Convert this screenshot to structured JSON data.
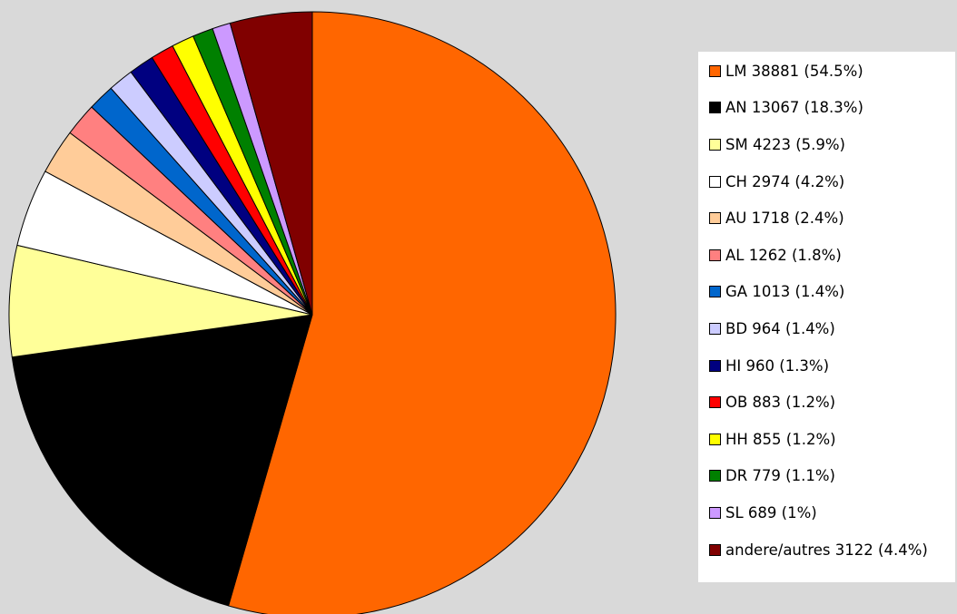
{
  "chart_data": {
    "type": "pie",
    "start_angle_deg": 0,
    "direction": "clockwise",
    "slices": [
      {
        "code": "LM",
        "value": 38881,
        "percent_label": "(54.5%)",
        "color": "#ff6600",
        "label": "LM 38881 (54.5%)"
      },
      {
        "code": "AN",
        "value": 13067,
        "percent_label": "(18.3%)",
        "color": "#000000",
        "label": "AN 13067 (18.3%)"
      },
      {
        "code": "SM",
        "value": 4223,
        "percent_label": "(5.9%)",
        "color": "#ffff99",
        "label": "SM 4223 (5.9%)"
      },
      {
        "code": "CH",
        "value": 2974,
        "percent_label": "(4.2%)",
        "color": "#ffffff",
        "label": "CH 2974 (4.2%)"
      },
      {
        "code": "AU",
        "value": 1718,
        "percent_label": "(2.4%)",
        "color": "#ffcc99",
        "label": "AU 1718 (2.4%)"
      },
      {
        "code": "AL",
        "value": 1262,
        "percent_label": "(1.8%)",
        "color": "#ff8080",
        "label": "AL 1262 (1.8%)"
      },
      {
        "code": "GA",
        "value": 1013,
        "percent_label": "(1.4%)",
        "color": "#0066cc",
        "label": "GA 1013 (1.4%)"
      },
      {
        "code": "BD",
        "value": 964,
        "percent_label": "(1.4%)",
        "color": "#ccccff",
        "label": "BD 964 (1.4%)"
      },
      {
        "code": "HI",
        "value": 960,
        "percent_label": "(1.3%)",
        "color": "#000080",
        "label": "HI 960 (1.3%)"
      },
      {
        "code": "OB",
        "value": 883,
        "percent_label": "(1.2%)",
        "color": "#ff0000",
        "label": "OB 883 (1.2%)"
      },
      {
        "code": "HH",
        "value": 855,
        "percent_label": "(1.2%)",
        "color": "#ffff00",
        "label": "HH 855 (1.2%)"
      },
      {
        "code": "DR",
        "value": 779,
        "percent_label": "(1.1%)",
        "color": "#008000",
        "label": "DR 779 (1.1%)"
      },
      {
        "code": "SL",
        "value": 689,
        "percent_label": "(1%)",
        "color": "#cc99ff",
        "label": "SL 689 (1%)"
      },
      {
        "code": "andere/autres",
        "value": 3122,
        "percent_label": "(4.4%)",
        "color": "#800000",
        "label": "andere/autres 3122 (4.4%)"
      }
    ],
    "legend_position": "right",
    "title": ""
  },
  "page": {
    "background_color": "#d9d9d9"
  }
}
